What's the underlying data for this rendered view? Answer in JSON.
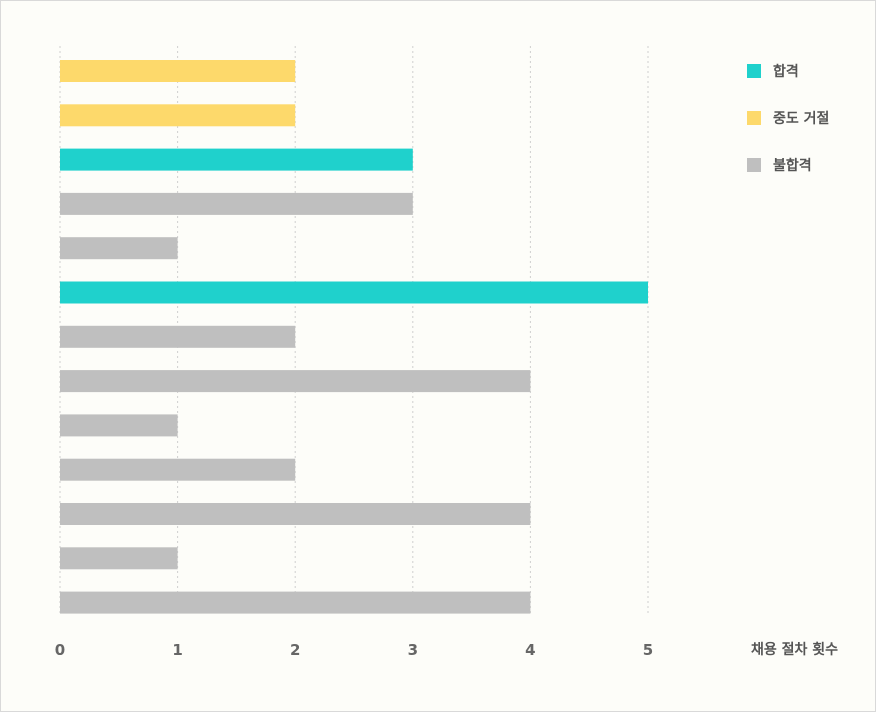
{
  "chart_data": {
    "type": "bar",
    "orientation": "horizontal",
    "xlabel": "채용 절차 횟수",
    "xlim": [
      0,
      5
    ],
    "x_ticks": [
      0,
      1,
      2,
      3,
      4,
      5
    ],
    "grid": "vertical dotted",
    "legend_position": "top-right",
    "legend": [
      {
        "key": "pass",
        "label": "합격",
        "color": "#1fd1cc"
      },
      {
        "key": "dropout",
        "label": "중도 거절",
        "color": "#fdd96b"
      },
      {
        "key": "fail",
        "label": "불합격",
        "color": "#bfbfbf"
      }
    ],
    "bars": [
      {
        "value": 2,
        "status": "dropout"
      },
      {
        "value": 2,
        "status": "dropout"
      },
      {
        "value": 3,
        "status": "pass"
      },
      {
        "value": 3,
        "status": "fail"
      },
      {
        "value": 1,
        "status": "fail"
      },
      {
        "value": 5,
        "status": "pass"
      },
      {
        "value": 2,
        "status": "fail"
      },
      {
        "value": 4,
        "status": "fail"
      },
      {
        "value": 1,
        "status": "fail"
      },
      {
        "value": 2,
        "status": "fail"
      },
      {
        "value": 4,
        "status": "fail"
      },
      {
        "value": 1,
        "status": "fail"
      },
      {
        "value": 4,
        "status": "fail"
      }
    ]
  }
}
